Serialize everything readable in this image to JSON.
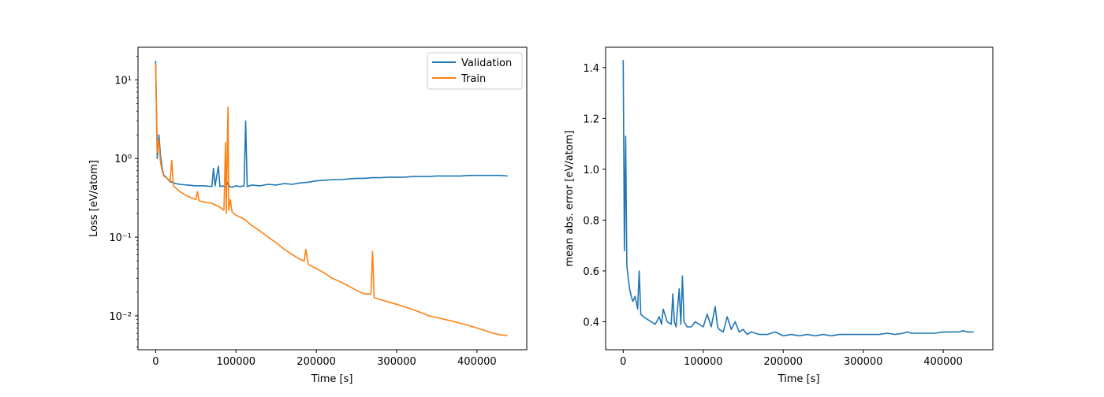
{
  "chart_data": [
    {
      "type": "line",
      "title": "",
      "xlabel": "Time [s]",
      "ylabel": "Loss [eV/atom]",
      "yscale": "log",
      "xlim": [
        -22000,
        462000
      ],
      "ylim": [
        0.0037,
        26
      ],
      "xticks": [
        0,
        100000,
        200000,
        300000,
        400000
      ],
      "xtick_labels": [
        "0",
        "100000",
        "200000",
        "300000",
        "400000"
      ],
      "yticks": [
        0.01,
        0.1,
        1,
        10
      ],
      "ytick_labels": [
        "10⁻²",
        "10⁻¹",
        "10⁰",
        "10¹"
      ],
      "grid": false,
      "legend": "top-right",
      "series": [
        {
          "name": "Validation",
          "color": "#1f77b4",
          "x": [
            0,
            2000,
            4000,
            6000,
            8000,
            10000,
            15000,
            20000,
            25000,
            30000,
            40000,
            50000,
            60000,
            70000,
            72000,
            74000,
            78000,
            80000,
            85000,
            88000,
            90000,
            92000,
            95000,
            100000,
            105000,
            110000,
            112000,
            114000,
            120000,
            130000,
            140000,
            150000,
            160000,
            170000,
            180000,
            190000,
            200000,
            210000,
            220000,
            230000,
            240000,
            250000,
            260000,
            270000,
            280000,
            290000,
            300000,
            310000,
            320000,
            330000,
            340000,
            350000,
            360000,
            370000,
            380000,
            390000,
            400000,
            410000,
            420000,
            430000,
            438000
          ],
          "y": [
            17.5,
            1.0,
            2.0,
            1.1,
            0.75,
            0.62,
            0.55,
            0.5,
            0.48,
            0.47,
            0.46,
            0.45,
            0.45,
            0.44,
            0.75,
            0.45,
            0.8,
            0.44,
            0.45,
            0.43,
            0.5,
            0.44,
            0.43,
            0.45,
            0.44,
            0.45,
            3.0,
            0.44,
            0.46,
            0.45,
            0.47,
            0.46,
            0.48,
            0.47,
            0.49,
            0.5,
            0.52,
            0.53,
            0.54,
            0.54,
            0.55,
            0.56,
            0.56,
            0.57,
            0.57,
            0.58,
            0.58,
            0.58,
            0.59,
            0.59,
            0.59,
            0.6,
            0.6,
            0.6,
            0.6,
            0.61,
            0.61,
            0.61,
            0.61,
            0.61,
            0.6
          ]
        },
        {
          "name": "Train",
          "color": "#ff7f0e",
          "x": [
            0,
            2000,
            4000,
            6000,
            8000,
            10000,
            15000,
            18000,
            20000,
            22000,
            30000,
            40000,
            50000,
            52000,
            54000,
            60000,
            70000,
            80000,
            85000,
            87000,
            88000,
            90000,
            91000,
            93000,
            95000,
            100000,
            110000,
            120000,
            130000,
            140000,
            150000,
            160000,
            170000,
            180000,
            185000,
            187000,
            190000,
            200000,
            210000,
            220000,
            230000,
            240000,
            250000,
            260000,
            268000,
            270000,
            272000,
            280000,
            290000,
            300000,
            310000,
            320000,
            330000,
            340000,
            350000,
            360000,
            370000,
            380000,
            390000,
            400000,
            410000,
            420000,
            430000,
            438000
          ],
          "y": [
            16,
            1.2,
            1.7,
            0.9,
            0.7,
            0.6,
            0.55,
            0.5,
            0.95,
            0.45,
            0.38,
            0.33,
            0.3,
            0.38,
            0.29,
            0.28,
            0.27,
            0.24,
            0.22,
            1.6,
            0.2,
            4.5,
            0.22,
            0.3,
            0.21,
            0.19,
            0.17,
            0.14,
            0.12,
            0.1,
            0.085,
            0.07,
            0.06,
            0.052,
            0.05,
            0.07,
            0.045,
            0.04,
            0.035,
            0.03,
            0.027,
            0.024,
            0.021,
            0.019,
            0.019,
            0.066,
            0.017,
            0.016,
            0.015,
            0.014,
            0.013,
            0.012,
            0.011,
            0.01,
            0.0095,
            0.009,
            0.0085,
            0.008,
            0.0075,
            0.007,
            0.0065,
            0.006,
            0.0057,
            0.0056
          ]
        }
      ]
    },
    {
      "type": "line",
      "title": "",
      "xlabel": "Time [s]",
      "ylabel": "mean abs. error [eV/atom]",
      "yscale": "linear",
      "xlim": [
        -22000,
        462000
      ],
      "ylim": [
        0.29,
        1.48
      ],
      "xticks": [
        0,
        100000,
        200000,
        300000,
        400000
      ],
      "xtick_labels": [
        "0",
        "100000",
        "200000",
        "300000",
        "400000"
      ],
      "yticks": [
        0.4,
        0.6,
        0.8,
        1.0,
        1.2,
        1.4
      ],
      "ytick_labels": [
        "0.4",
        "0.6",
        "0.8",
        "1.0",
        "1.2",
        "1.4"
      ],
      "grid": false,
      "series": [
        {
          "color": "#1f77b4",
          "x": [
            0,
            1500,
            3000,
            4500,
            6000,
            8000,
            10000,
            12000,
            15000,
            18000,
            20000,
            22000,
            25000,
            30000,
            35000,
            40000,
            45000,
            48000,
            50000,
            55000,
            60000,
            62000,
            64000,
            66000,
            70000,
            72000,
            74000,
            76000,
            78000,
            80000,
            85000,
            90000,
            95000,
            100000,
            105000,
            110000,
            115000,
            118000,
            120000,
            125000,
            130000,
            135000,
            140000,
            145000,
            150000,
            155000,
            160000,
            170000,
            180000,
            190000,
            200000,
            210000,
            220000,
            230000,
            240000,
            250000,
            260000,
            270000,
            280000,
            290000,
            300000,
            310000,
            320000,
            330000,
            340000,
            350000,
            355000,
            360000,
            370000,
            380000,
            390000,
            400000,
            410000,
            420000,
            425000,
            430000,
            438000
          ],
          "y": [
            1.43,
            0.68,
            1.13,
            0.62,
            0.58,
            0.53,
            0.5,
            0.48,
            0.5,
            0.45,
            0.6,
            0.43,
            0.42,
            0.41,
            0.4,
            0.39,
            0.42,
            0.39,
            0.45,
            0.4,
            0.39,
            0.51,
            0.4,
            0.38,
            0.53,
            0.39,
            0.58,
            0.4,
            0.39,
            0.38,
            0.38,
            0.4,
            0.39,
            0.38,
            0.43,
            0.38,
            0.46,
            0.38,
            0.37,
            0.36,
            0.42,
            0.37,
            0.4,
            0.36,
            0.37,
            0.35,
            0.36,
            0.35,
            0.35,
            0.36,
            0.345,
            0.35,
            0.345,
            0.35,
            0.345,
            0.35,
            0.345,
            0.35,
            0.35,
            0.35,
            0.35,
            0.35,
            0.35,
            0.355,
            0.35,
            0.355,
            0.36,
            0.355,
            0.355,
            0.355,
            0.355,
            0.36,
            0.36,
            0.36,
            0.365,
            0.36,
            0.36
          ]
        }
      ]
    }
  ]
}
